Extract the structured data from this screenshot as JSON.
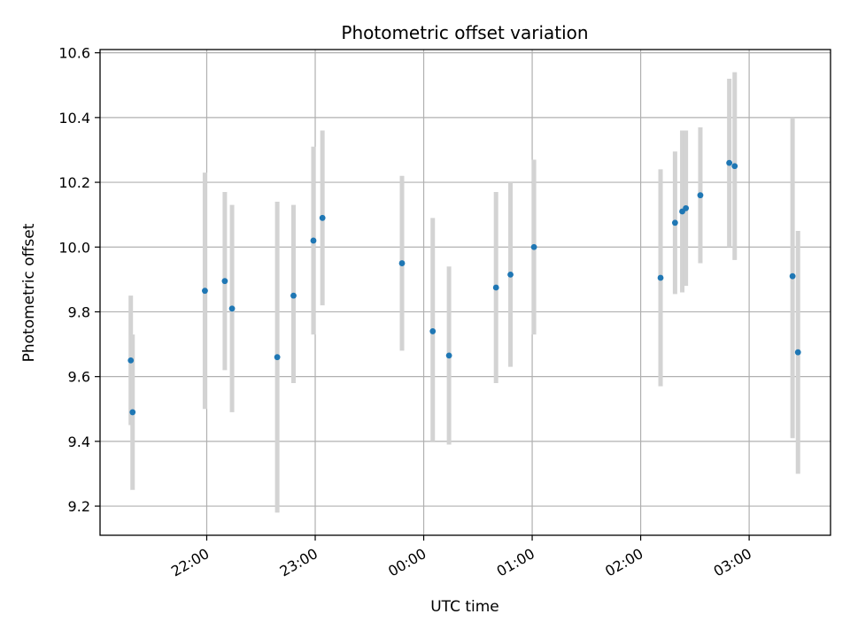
{
  "chart_data": {
    "type": "scatter",
    "title": "Photometric offset variation",
    "xlabel": "UTC time",
    "ylabel": "Photometric offset",
    "grid": true,
    "x_unit": "UTC time (night spanning midnight)",
    "xlim": [
      "21:01",
      "03:45"
    ],
    "ylim": [
      9.11,
      10.61
    ],
    "x_ticks": [
      "22:00",
      "23:00",
      "00:00",
      "01:00",
      "02:00",
      "03:00"
    ],
    "y_ticks": [
      9.2,
      9.4,
      9.6,
      9.8,
      10.0,
      10.2,
      10.4,
      10.6
    ],
    "y_tick_labels": [
      "9.2",
      "9.4",
      "9.6",
      "9.8",
      "10.0",
      "10.2",
      "10.4",
      "10.6"
    ],
    "colors": {
      "point": "#1f77b4",
      "errorbar": "#d3d3d3",
      "grid": "#b0b0b0",
      "axes": "#000000"
    },
    "series": [
      {
        "points": [
          {
            "x": "21:18",
            "y": 9.65,
            "lo": 9.45,
            "hi": 9.85
          },
          {
            "x": "21:19",
            "y": 9.49,
            "lo": 9.25,
            "hi": 9.73
          },
          {
            "x": "21:59",
            "y": 9.865,
            "lo": 9.5,
            "hi": 10.23
          },
          {
            "x": "22:10",
            "y": 9.895,
            "lo": 9.62,
            "hi": 10.17
          },
          {
            "x": "22:14",
            "y": 9.81,
            "lo": 9.49,
            "hi": 10.13
          },
          {
            "x": "22:39",
            "y": 9.66,
            "lo": 9.18,
            "hi": 10.14
          },
          {
            "x": "22:48",
            "y": 9.85,
            "lo": 9.58,
            "hi": 10.13
          },
          {
            "x": "22:59",
            "y": 10.02,
            "lo": 9.73,
            "hi": 10.31
          },
          {
            "x": "23:04",
            "y": 10.09,
            "lo": 9.82,
            "hi": 10.36
          },
          {
            "x": "23:48",
            "y": 9.95,
            "lo": 9.68,
            "hi": 10.22
          },
          {
            "x": "00:05",
            "y": 9.74,
            "lo": 9.4,
            "hi": 10.09
          },
          {
            "x": "00:14",
            "y": 9.665,
            "lo": 9.39,
            "hi": 9.94
          },
          {
            "x": "00:40",
            "y": 9.875,
            "lo": 9.58,
            "hi": 10.17
          },
          {
            "x": "00:48",
            "y": 9.915,
            "lo": 9.63,
            "hi": 10.2
          },
          {
            "x": "01:01",
            "y": 10.0,
            "lo": 9.73,
            "hi": 10.27
          },
          {
            "x": "02:11",
            "y": 9.905,
            "lo": 9.57,
            "hi": 10.24
          },
          {
            "x": "02:19",
            "y": 10.075,
            "lo": 9.855,
            "hi": 10.295
          },
          {
            "x": "02:23",
            "y": 10.11,
            "lo": 9.86,
            "hi": 10.36
          },
          {
            "x": "02:25",
            "y": 10.12,
            "lo": 9.88,
            "hi": 10.36
          },
          {
            "x": "02:33",
            "y": 10.16,
            "lo": 9.95,
            "hi": 10.37
          },
          {
            "x": "02:49",
            "y": 10.26,
            "lo": 10.0,
            "hi": 10.52
          },
          {
            "x": "02:52",
            "y": 10.25,
            "lo": 9.96,
            "hi": 10.54
          },
          {
            "x": "03:24",
            "y": 9.91,
            "lo": 9.41,
            "hi": 10.4
          },
          {
            "x": "03:27",
            "y": 9.675,
            "lo": 9.3,
            "hi": 10.05
          }
        ]
      }
    ]
  }
}
